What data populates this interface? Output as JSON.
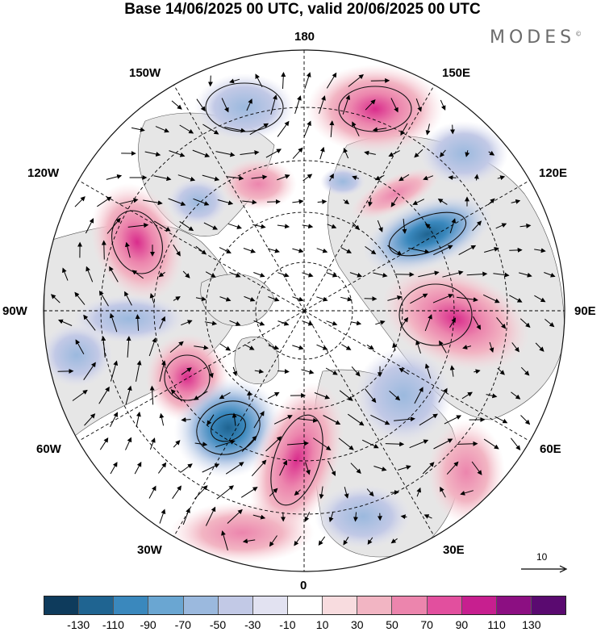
{
  "title": "Base 14/06/2025 00 UTC, valid 20/06/2025 00 UTC",
  "brand": "MODES",
  "brand_mark": "©",
  "projection": "north-polar-stereographic",
  "longitude_labels": {
    "top": "180",
    "top_right": "150E",
    "right_upper": "120E",
    "right": "90E",
    "right_lower": "60E",
    "bottom_right": "30E",
    "bottom": "0",
    "bottom_left": "30W",
    "left_lower": "60W",
    "left": "90W",
    "left_upper": "120W",
    "top_left": "150W"
  },
  "reference_vector": {
    "label": "10",
    "icon": "arrow-right-icon"
  },
  "colorbar": {
    "colors": [
      "#0e3b5c",
      "#1f6491",
      "#3a88bd",
      "#6aa6d2",
      "#9bb9de",
      "#c2c9e6",
      "#e2e2f1",
      "#ffffff",
      "#f8dcdf",
      "#f2b5c3",
      "#ec85ad",
      "#e24f9e",
      "#c71f8f",
      "#8c0f82",
      "#5a0a70"
    ],
    "ticks": [
      "-130",
      "-110",
      "-90",
      "-70",
      "-50",
      "-30",
      "-10",
      "10",
      "30",
      "50",
      "70",
      "90",
      "110",
      "130"
    ]
  },
  "anomaly_legend": {
    "positive_color": "#e84a92",
    "negative_color": "#3d7fb8",
    "land_color": "#e6e6e6"
  }
}
